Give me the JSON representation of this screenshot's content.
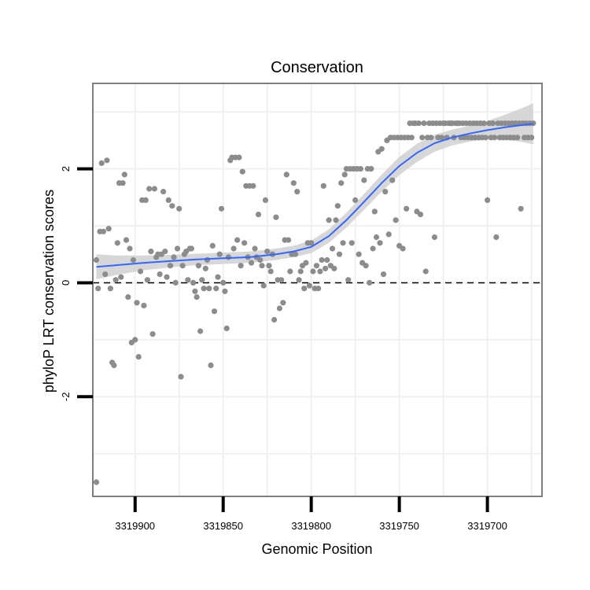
{
  "chart_data": {
    "type": "scatter",
    "title": "Conservation",
    "xlabel": "Genomic Position",
    "ylabel": "phyloP LRT conservation scores",
    "x_reversed": true,
    "xlim": [
      3319669,
      3319924
    ],
    "ylim": [
      -3.75,
      3.5
    ],
    "x_ticks": [
      3319900,
      3319850,
      3319800,
      3319750,
      3319700
    ],
    "x_tick_labels": [
      "3319900",
      "3319850",
      "3319800",
      "3319750",
      "3319700"
    ],
    "y_ticks": [
      -2,
      0,
      2
    ],
    "y_tick_labels": [
      "-2",
      "0",
      "2"
    ],
    "hline": 0,
    "colors": {
      "points": "#8c8c8c",
      "smooth": "#3366ff",
      "ribbon": "#d3d3d3",
      "grid": "#f0f0f0",
      "frame": "#7f7f7f"
    },
    "points": [
      [
        3319922,
        -3.5
      ],
      [
        3319922,
        0.4
      ],
      [
        3319921,
        -0.1
      ],
      [
        3319920,
        0.9
      ],
      [
        3319919,
        2.1
      ],
      [
        3319918,
        0.9
      ],
      [
        3319917,
        0.15
      ],
      [
        3319916,
        2.15
      ],
      [
        3319915,
        0.95
      ],
      [
        3319914,
        -0.1
      ],
      [
        3319913,
        -1.4
      ],
      [
        3319912,
        -1.45
      ],
      [
        3319911,
        0.05
      ],
      [
        3319910,
        0.7
      ],
      [
        3319909,
        1.75
      ],
      [
        3319908,
        0.1
      ],
      [
        3319907,
        1.75
      ],
      [
        3319906,
        1.9
      ],
      [
        3319905,
        0.75
      ],
      [
        3319904,
        -0.25
      ],
      [
        3319903,
        0.6
      ],
      [
        3319902,
        -1.05
      ],
      [
        3319901,
        0.4
      ],
      [
        3319900,
        -1.0
      ],
      [
        3319899,
        -0.35
      ],
      [
        3319898,
        -1.3
      ],
      [
        3319897,
        0.2
      ],
      [
        3319896,
        1.45
      ],
      [
        3319895,
        -0.4
      ],
      [
        3319894,
        1.45
      ],
      [
        3319893,
        0.05
      ],
      [
        3319892,
        1.65
      ],
      [
        3319891,
        0.55
      ],
      [
        3319890,
        -0.9
      ],
      [
        3319889,
        1.65
      ],
      [
        3319888,
        0.45
      ],
      [
        3319887,
        0.5
      ],
      [
        3319886,
        0.15
      ],
      [
        3319885,
        0.5
      ],
      [
        3319884,
        1.6
      ],
      [
        3319883,
        0.55
      ],
      [
        3319882,
        0.1
      ],
      [
        3319881,
        1.45
      ],
      [
        3319880,
        0.3
      ],
      [
        3319879,
        1.35
      ],
      [
        3319878,
        0.45
      ],
      [
        3319877,
        0.0
      ],
      [
        3319876,
        0.6
      ],
      [
        3319875,
        1.3
      ],
      [
        3319874,
        -1.65
      ],
      [
        3319873,
        0.3
      ],
      [
        3319872,
        0.5
      ],
      [
        3319871,
        0.55
      ],
      [
        3319870,
        0.05
      ],
      [
        3319869,
        0.6
      ],
      [
        3319868,
        0.6
      ],
      [
        3319867,
        0.0
      ],
      [
        3319866,
        -0.15
      ],
      [
        3319865,
        -0.25
      ],
      [
        3319864,
        0.3
      ],
      [
        3319863,
        -0.85
      ],
      [
        3319862,
        0.05
      ],
      [
        3319861,
        -0.1
      ],
      [
        3319860,
        0.25
      ],
      [
        3319859,
        0.4
      ],
      [
        3319858,
        -0.1
      ],
      [
        3319857,
        -1.45
      ],
      [
        3319856,
        0.65
      ],
      [
        3319855,
        -0.5
      ],
      [
        3319854,
        -0.1
      ],
      [
        3319853,
        0.1
      ],
      [
        3319852,
        0.5
      ],
      [
        3319851,
        1.3
      ],
      [
        3319850,
        0.0
      ],
      [
        3319849,
        -0.15
      ],
      [
        3319848,
        -0.8
      ],
      [
        3319847,
        0.45
      ],
      [
        3319846,
        2.15
      ],
      [
        3319845,
        2.2
      ],
      [
        3319844,
        0.6
      ],
      [
        3319843,
        2.2
      ],
      [
        3319842,
        0.75
      ],
      [
        3319841,
        2.2
      ],
      [
        3319840,
        0.3
      ],
      [
        3319839,
        1.95
      ],
      [
        3319838,
        0.7
      ],
      [
        3319837,
        1.7
      ],
      [
        3319836,
        0.45
      ],
      [
        3319835,
        1.7
      ],
      [
        3319834,
        0.35
      ],
      [
        3319833,
        1.7
      ],
      [
        3319832,
        0.6
      ],
      [
        3319831,
        0.45
      ],
      [
        3319830,
        1.2
      ],
      [
        3319829,
        0.4
      ],
      [
        3319828,
        0.3
      ],
      [
        3319827,
        -0.05
      ],
      [
        3319826,
        1.45
      ],
      [
        3319825,
        0.55
      ],
      [
        3319824,
        0.3
      ],
      [
        3319823,
        0.2
      ],
      [
        3319822,
        0.5
      ],
      [
        3319821,
        -0.65
      ],
      [
        3319820,
        1.15
      ],
      [
        3319819,
        0.05
      ],
      [
        3319818,
        -0.45
      ],
      [
        3319817,
        0.05
      ],
      [
        3319816,
        -0.35
      ],
      [
        3319815,
        0.75
      ],
      [
        3319814,
        1.9
      ],
      [
        3319813,
        0.75
      ],
      [
        3319812,
        0.2
      ],
      [
        3319811,
        0.5
      ],
      [
        3319810,
        1.75
      ],
      [
        3319809,
        0.5
      ],
      [
        3319808,
        1.6
      ],
      [
        3319807,
        0.05
      ],
      [
        3319806,
        0.2
      ],
      [
        3319805,
        0.3
      ],
      [
        3319804,
        -0.1
      ],
      [
        3319803,
        0.35
      ],
      [
        3319802,
        0.7
      ],
      [
        3319801,
        -0.05
      ],
      [
        3319800,
        0.7
      ],
      [
        3319799,
        0.2
      ],
      [
        3319798,
        -0.1
      ],
      [
        3319797,
        0.3
      ],
      [
        3319796,
        -0.1
      ],
      [
        3319795,
        0.2
      ],
      [
        3319794,
        0.4
      ],
      [
        3319793,
        1.7
      ],
      [
        3319792,
        0.25
      ],
      [
        3319791,
        0.4
      ],
      [
        3319790,
        1.1
      ],
      [
        3319789,
        0.3
      ],
      [
        3319788,
        0.6
      ],
      [
        3319787,
        0.25
      ],
      [
        3319786,
        1.1
      ],
      [
        3319785,
        1.35
      ],
      [
        3319784,
        0.5
      ],
      [
        3319783,
        1.75
      ],
      [
        3319782,
        0.7
      ],
      [
        3319781,
        1.9
      ],
      [
        3319780,
        2.0
      ],
      [
        3319779,
        0.05
      ],
      [
        3319778,
        2.0
      ],
      [
        3319777,
        0.7
      ],
      [
        3319776,
        2.0
      ],
      [
        3319775,
        1.45
      ],
      [
        3319774,
        2.0
      ],
      [
        3319773,
        0.5
      ],
      [
        3319772,
        2.0
      ],
      [
        3319771,
        0.35
      ],
      [
        3319770,
        1.8
      ],
      [
        3319769,
        0.3
      ],
      [
        3319768,
        2.0
      ],
      [
        3319767,
        0.0
      ],
      [
        3319766,
        2.0
      ],
      [
        3319765,
        0.6
      ],
      [
        3319764,
        1.25
      ],
      [
        3319763,
        0.8
      ],
      [
        3319762,
        2.3
      ],
      [
        3319761,
        0.7
      ],
      [
        3319760,
        2.35
      ],
      [
        3319759,
        0.15
      ],
      [
        3319758,
        1.6
      ],
      [
        3319757,
        2.5
      ],
      [
        3319756,
        0.85
      ],
      [
        3319755,
        2.55
      ],
      [
        3319754,
        1.8
      ],
      [
        3319753,
        2.55
      ],
      [
        3319752,
        1.1
      ],
      [
        3319751,
        2.55
      ],
      [
        3319750,
        0.65
      ],
      [
        3319749,
        2.55
      ],
      [
        3319748,
        0.6
      ],
      [
        3319747,
        2.55
      ],
      [
        3319746,
        1.3
      ],
      [
        3319745,
        2.55
      ],
      [
        3319744,
        2.8
      ],
      [
        3319743,
        2.55
      ],
      [
        3319742,
        2.8
      ],
      [
        3319741,
        2.8
      ],
      [
        3319740,
        1.25
      ],
      [
        3319739,
        2.8
      ],
      [
        3319738,
        1.2
      ],
      [
        3319737,
        2.55
      ],
      [
        3319736,
        2.8
      ],
      [
        3319735,
        0.2
      ],
      [
        3319734,
        2.55
      ],
      [
        3319733,
        2.8
      ],
      [
        3319732,
        2.55
      ],
      [
        3319731,
        2.8
      ],
      [
        3319730,
        0.8
      ],
      [
        3319729,
        2.8
      ],
      [
        3319728,
        2.55
      ],
      [
        3319727,
        2.8
      ],
      [
        3319726,
        2.55
      ],
      [
        3319725,
        2.8
      ],
      [
        3319724,
        2.8
      ],
      [
        3319723,
        2.55
      ],
      [
        3319722,
        2.8
      ],
      [
        3319721,
        2.8
      ],
      [
        3319720,
        2.8
      ],
      [
        3319719,
        2.55
      ],
      [
        3319718,
        2.8
      ],
      [
        3319717,
        2.8
      ],
      [
        3319716,
        2.8
      ],
      [
        3319715,
        2.55
      ],
      [
        3319714,
        2.8
      ],
      [
        3319713,
        2.55
      ],
      [
        3319712,
        2.8
      ],
      [
        3319711,
        2.55
      ],
      [
        3319710,
        2.8
      ],
      [
        3319709,
        2.55
      ],
      [
        3319708,
        2.8
      ],
      [
        3319707,
        2.55
      ],
      [
        3319706,
        2.8
      ],
      [
        3319705,
        2.55
      ],
      [
        3319704,
        2.8
      ],
      [
        3319703,
        2.55
      ],
      [
        3319702,
        2.8
      ],
      [
        3319701,
        2.55
      ],
      [
        3319700,
        1.45
      ],
      [
        3319699,
        2.8
      ],
      [
        3319698,
        2.55
      ],
      [
        3319697,
        2.8
      ],
      [
        3319696,
        2.55
      ],
      [
        3319695,
        0.8
      ],
      [
        3319694,
        2.8
      ],
      [
        3319693,
        2.55
      ],
      [
        3319692,
        2.8
      ],
      [
        3319691,
        2.55
      ],
      [
        3319690,
        2.8
      ],
      [
        3319689,
        2.55
      ],
      [
        3319688,
        2.8
      ],
      [
        3319687,
        2.55
      ],
      [
        3319686,
        2.8
      ],
      [
        3319685,
        2.55
      ],
      [
        3319684,
        2.8
      ],
      [
        3319683,
        2.55
      ],
      [
        3319682,
        2.8
      ],
      [
        3319681,
        1.3
      ],
      [
        3319680,
        2.8
      ],
      [
        3319679,
        2.55
      ],
      [
        3319678,
        2.8
      ],
      [
        3319677,
        2.55
      ],
      [
        3319676,
        2.8
      ],
      [
        3319675,
        2.55
      ],
      [
        3319674,
        2.8
      ]
    ],
    "smooth": {
      "x": [
        3319922,
        3319910,
        3319895,
        3319880,
        3319865,
        3319850,
        3319835,
        3319820,
        3319810,
        3319800,
        3319790,
        3319780,
        3319770,
        3319760,
        3319750,
        3319740,
        3319730,
        3319720,
        3319710,
        3319700,
        3319690,
        3319680,
        3319674
      ],
      "y": [
        0.28,
        0.31,
        0.35,
        0.38,
        0.41,
        0.43,
        0.45,
        0.5,
        0.55,
        0.63,
        0.82,
        1.1,
        1.42,
        1.75,
        2.05,
        2.28,
        2.45,
        2.55,
        2.62,
        2.68,
        2.73,
        2.77,
        2.79
      ],
      "se": [
        0.22,
        0.17,
        0.13,
        0.11,
        0.1,
        0.1,
        0.1,
        0.1,
        0.1,
        0.11,
        0.12,
        0.13,
        0.14,
        0.15,
        0.16,
        0.16,
        0.15,
        0.14,
        0.14,
        0.16,
        0.22,
        0.3,
        0.36
      ]
    }
  }
}
